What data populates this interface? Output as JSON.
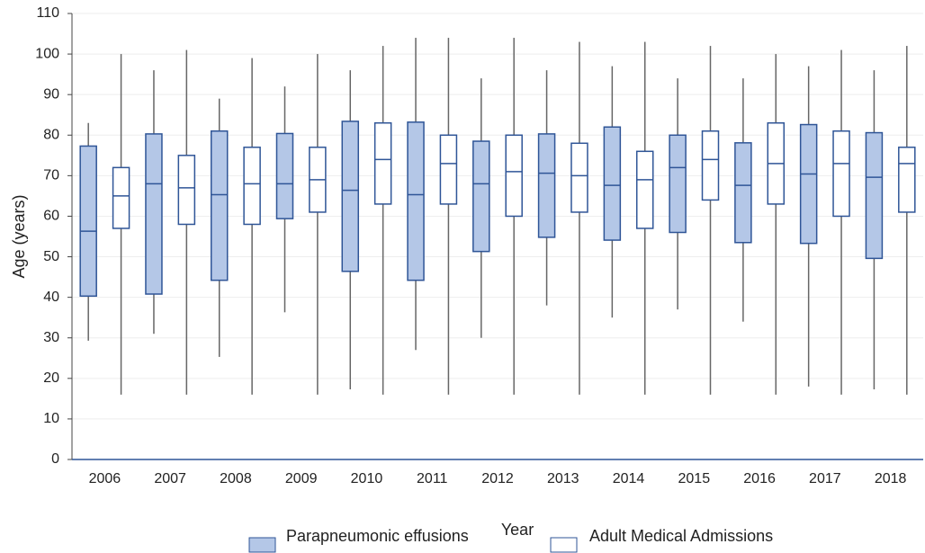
{
  "chart_data": {
    "type": "box",
    "x_label": "Year",
    "y_label": "Age (years)",
    "categories": [
      "2006",
      "2007",
      "2008",
      "2009",
      "2010",
      "2011",
      "2012",
      "2013",
      "2014",
      "2015",
      "2016",
      "2017",
      "2018"
    ],
    "ylim": [
      0,
      110
    ],
    "yticks": [
      0,
      10,
      20,
      30,
      40,
      50,
      60,
      70,
      80,
      90,
      100,
      110
    ],
    "grid": true,
    "legend": "bottom",
    "series": [
      {
        "name": "Parapneumonic effusions",
        "color": "#b4c7e7",
        "min": [
          29.3,
          31,
          25.3,
          36.3,
          17.3,
          27,
          30,
          38,
          35,
          37,
          34,
          18,
          17.3
        ],
        "q1": [
          40.3,
          40.8,
          44.2,
          59.4,
          46.4,
          44.2,
          51.3,
          54.8,
          54.1,
          56,
          53.5,
          53.3,
          49.6
        ],
        "median": [
          56.3,
          68,
          65.3,
          68,
          66.4,
          65.3,
          68,
          70.6,
          67.6,
          72,
          67.6,
          70.4,
          69.6
        ],
        "q3": [
          77.3,
          80.3,
          81,
          80.4,
          83.4,
          83.2,
          78.5,
          80.3,
          82,
          80,
          78.1,
          82.6,
          80.6
        ],
        "max": [
          83,
          96,
          89,
          92,
          96,
          104,
          94,
          96,
          97,
          94,
          94,
          97,
          96
        ]
      },
      {
        "name": "Adult Medical Admissions",
        "color": "#ffffff",
        "min": [
          16,
          16,
          16,
          16,
          16,
          16,
          16,
          16,
          16,
          16,
          16,
          16,
          16
        ],
        "q1": [
          57,
          58,
          58,
          61,
          63,
          63,
          60,
          61,
          57,
          64,
          63,
          60,
          61
        ],
        "median": [
          65,
          67,
          68,
          69,
          74,
          73,
          71,
          70,
          69,
          74,
          73,
          73,
          73
        ],
        "q3": [
          72,
          75,
          77,
          77,
          83,
          80,
          80,
          78,
          76,
          81,
          83,
          81,
          77
        ],
        "max": [
          100,
          101,
          99,
          100,
          102,
          104,
          104,
          103,
          103,
          102,
          100,
          101,
          102
        ]
      }
    ]
  }
}
